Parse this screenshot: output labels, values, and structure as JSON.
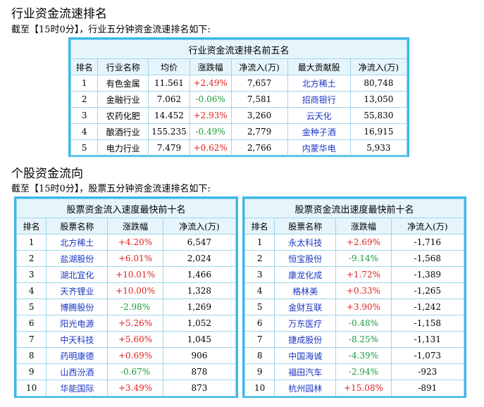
{
  "section1": {
    "heading": "行业资金流速排名",
    "note": "截至【15时0分】，行业五分钟资金流速排名如下:",
    "table_title": "行业资金流速排名前五名",
    "headers": [
      "排名",
      "行业名称",
      "均价",
      "涨跌幅",
      "净流入(万)",
      "最大贡献股",
      "净流入(万)"
    ],
    "rows": [
      [
        "1",
        "有色金属",
        "11.561",
        "+2.49%",
        "7,657",
        "北方稀土",
        "80,748"
      ],
      [
        "2",
        "金融行业",
        "7.062",
        "-0.06%",
        "7,581",
        "招商银行",
        "13,050"
      ],
      [
        "3",
        "农药化肥",
        "14.452",
        "+2.93%",
        "3,260",
        "云天化",
        "55,830"
      ],
      [
        "4",
        "酿酒行业",
        "155.235",
        "-0.49%",
        "2,779",
        "金种子酒",
        "16,915"
      ],
      [
        "5",
        "电力行业",
        "7.479",
        "+0.62%",
        "2,766",
        "内蒙华电",
        "5,933"
      ]
    ]
  },
  "section2": {
    "heading": "个股资金流向",
    "note": "截至【15时0分】，股票五分钟资金流速排名如下:",
    "inflow": {
      "title": "股票资金流入速度最快前十名",
      "headers": [
        "排名",
        "股票名称",
        "涨跌幅",
        "净流入(万)"
      ],
      "rows": [
        [
          "1",
          "北方稀土",
          "+4.20%",
          "6,547"
        ],
        [
          "2",
          "盐湖股份",
          "+6.01%",
          "2,024"
        ],
        [
          "3",
          "湖北宜化",
          "+10.01%",
          "1,466"
        ],
        [
          "4",
          "天齐锂业",
          "+10.00%",
          "1,328"
        ],
        [
          "5",
          "博腾股份",
          "-2.98%",
          "1,269"
        ],
        [
          "6",
          "阳光电源",
          "+5.26%",
          "1,052"
        ],
        [
          "7",
          "中天科技",
          "+5.60%",
          "1,045"
        ],
        [
          "8",
          "药明康德",
          "+0.69%",
          "906"
        ],
        [
          "9",
          "山西汾酒",
          "-0.67%",
          "878"
        ],
        [
          "10",
          "华能国际",
          "+3.49%",
          "873"
        ]
      ]
    },
    "outflow": {
      "title": "股票资金流出速度最快前十名",
      "headers": [
        "排名",
        "股票名称",
        "涨跌幅",
        "净流入(万)"
      ],
      "rows": [
        [
          "1",
          "永太科技",
          "+2.69%",
          "-1,716"
        ],
        [
          "2",
          "恒宝股份",
          "-9.14%",
          "-1,568"
        ],
        [
          "3",
          "康龙化成",
          "+1.72%",
          "-1,389"
        ],
        [
          "4",
          "格林美",
          "+0.33%",
          "-1,265"
        ],
        [
          "5",
          "金财互联",
          "+3.90%",
          "-1,242"
        ],
        [
          "6",
          "万东医疗",
          "-0.48%",
          "-1,158"
        ],
        [
          "7",
          "捷成股份",
          "-8.25%",
          "-1,131"
        ],
        [
          "8",
          "中国海诚",
          "-4.39%",
          "-1,073"
        ],
        [
          "9",
          "福田汽车",
          "-2.94%",
          "-923"
        ],
        [
          "10",
          "杭州园林",
          "+15.08%",
          "-891"
        ]
      ]
    }
  }
}
